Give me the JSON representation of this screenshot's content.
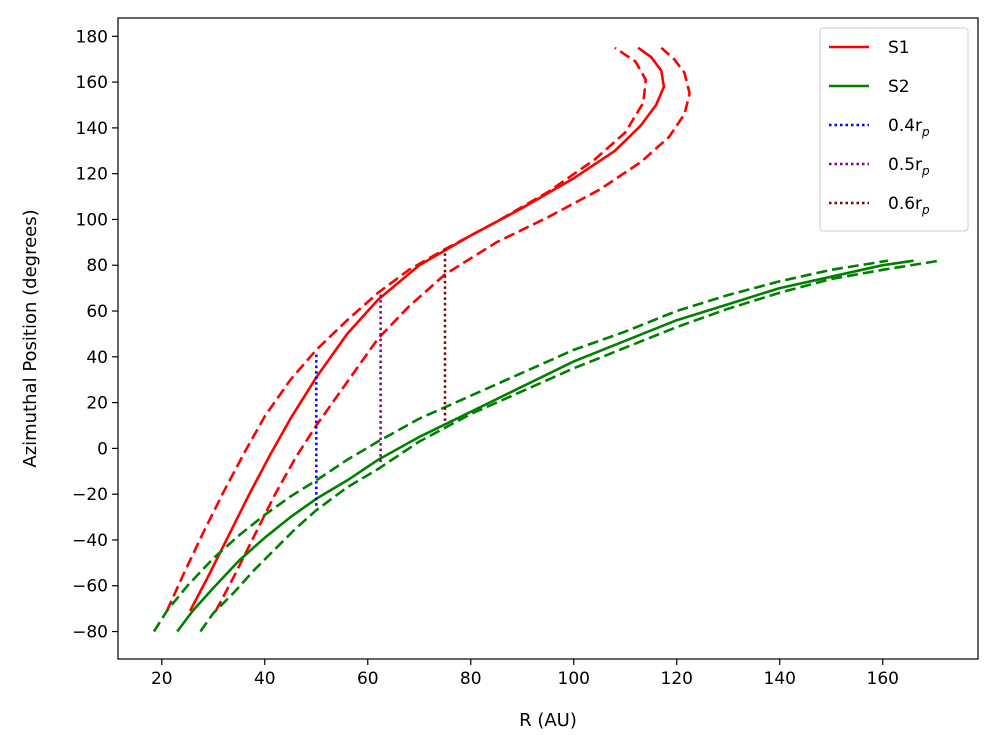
{
  "chart_data": {
    "type": "line",
    "title": "",
    "xlabel": "R (AU)",
    "ylabel": "Azimuthal Position (degrees)",
    "xlim": [
      11.5,
      178.5
    ],
    "ylim": [
      -92,
      188
    ],
    "xticks": [
      20,
      40,
      60,
      80,
      100,
      120,
      140,
      160
    ],
    "xtick_labels": [
      "20",
      "40",
      "60",
      "80",
      "100",
      "120",
      "140",
      "160"
    ],
    "yticks": [
      -80,
      -60,
      -40,
      -20,
      0,
      20,
      40,
      60,
      80,
      100,
      120,
      140,
      160,
      180
    ],
    "ytick_labels": [
      "−80",
      "−60",
      "−40",
      "−20",
      "0",
      "20",
      "40",
      "60",
      "80",
      "100",
      "120",
      "140",
      "160",
      "180"
    ],
    "grid": false,
    "legend_position": "top-right",
    "series": [
      {
        "name": "S1",
        "color": "#ff0000",
        "style": "solid",
        "x": [
          25.5,
          29,
          33,
          37,
          41,
          45,
          50,
          56,
          62,
          70,
          80,
          90,
          100,
          108,
          113,
          116,
          117.5,
          117,
          115,
          112.5
        ],
        "y": [
          -71,
          -56,
          -38,
          -20,
          -3,
          13,
          31,
          50,
          65,
          80,
          93,
          105,
          118,
          130,
          141,
          150,
          158,
          165,
          171,
          175
        ]
      },
      {
        "name": "S1 upper bound",
        "color": "#ff0000",
        "style": "dashed",
        "x": [
          21,
          24,
          28,
          32,
          36,
          40,
          45,
          50,
          56,
          62,
          68,
          75,
          85,
          95,
          104,
          110,
          113.5,
          114,
          112,
          108
        ],
        "y": [
          -71,
          -56,
          -37,
          -19,
          -2,
          14,
          30,
          43,
          56,
          68,
          78,
          87,
          99,
          112,
          126,
          138,
          151,
          161,
          169,
          175
        ]
      },
      {
        "name": "S1 lower bound",
        "color": "#ff0000",
        "style": "dashed",
        "x": [
          30.5,
          34,
          38,
          42,
          46,
          50,
          56,
          62,
          68,
          75,
          85,
          95,
          105,
          113,
          118.5,
          121.5,
          122.5,
          121.5,
          119.5,
          117
        ],
        "y": [
          -71,
          -56,
          -38,
          -20,
          -4,
          10,
          29,
          48,
          62,
          76,
          90,
          101,
          113,
          125,
          136,
          146,
          155,
          164,
          170,
          175
        ]
      },
      {
        "name": "S2",
        "color": "#008000",
        "style": "solid",
        "x": [
          23,
          26,
          30,
          35,
          40,
          45,
          50,
          56,
          62,
          70,
          80,
          90,
          100,
          110,
          120,
          130,
          140,
          150,
          160,
          166
        ],
        "y": [
          -80,
          -71,
          -61,
          -49,
          -39,
          -30,
          -22,
          -14,
          -5,
          5,
          16,
          27,
          38,
          47,
          56,
          63,
          70,
          75,
          80,
          82
        ]
      },
      {
        "name": "S2 upper bound",
        "color": "#008000",
        "style": "dashed",
        "x": [
          18.5,
          21,
          25,
          30,
          35,
          40,
          45,
          50,
          56,
          62,
          70,
          80,
          90,
          100,
          110,
          120,
          130,
          140,
          150,
          161
        ],
        "y": [
          -80,
          -71,
          -60,
          -48,
          -38,
          -29,
          -21,
          -14,
          -5,
          3,
          13,
          23,
          33,
          43,
          51,
          60,
          67,
          73,
          78,
          82
        ]
      },
      {
        "name": "S2 lower bound",
        "color": "#008000",
        "style": "dashed",
        "x": [
          27.5,
          30,
          34,
          38,
          42,
          46,
          50,
          56,
          62,
          70,
          80,
          90,
          100,
          110,
          120,
          130,
          140,
          150,
          160,
          171
        ],
        "y": [
          -80,
          -72,
          -63,
          -53,
          -44,
          -35,
          -27,
          -17,
          -9,
          3,
          15,
          25,
          35,
          44,
          53,
          61,
          68,
          74,
          78,
          82
        ]
      },
      {
        "name": "0.4r_p",
        "color": "#0000ff",
        "style": "dotted",
        "x": [
          50,
          50
        ],
        "y": [
          -25,
          42
        ]
      },
      {
        "name": "0.5r_p",
        "color": "#800080",
        "style": "dotted",
        "x": [
          62.5,
          62.5
        ],
        "y": [
          -6,
          68
        ]
      },
      {
        "name": "0.6r_p",
        "color": "#800000",
        "style": "dotted",
        "x": [
          75,
          75
        ],
        "y": [
          12,
          87
        ]
      }
    ],
    "legend": [
      {
        "label": "S1",
        "sub": "",
        "color": "#ff0000",
        "style": "solid"
      },
      {
        "label": "S2",
        "sub": "",
        "color": "#008000",
        "style": "solid"
      },
      {
        "label": "0.4r",
        "sub": "p",
        "color": "#0000ff",
        "style": "dotted"
      },
      {
        "label": "0.5r",
        "sub": "p",
        "color": "#800080",
        "style": "dotted"
      },
      {
        "label": "0.6r",
        "sub": "p",
        "color": "#800000",
        "style": "dotted"
      }
    ]
  }
}
